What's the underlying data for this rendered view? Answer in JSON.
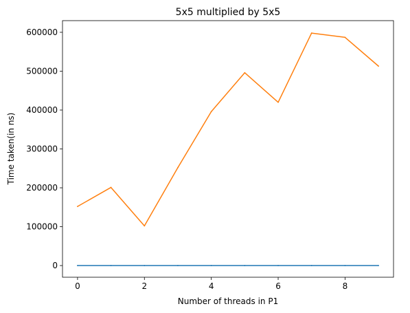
{
  "chart_data": {
    "type": "line",
    "title": "5x5 multiplied by 5x5",
    "xlabel": "Number of threads in P1",
    "ylabel": "Time taken(in ns)",
    "x": [
      0,
      1,
      2,
      3,
      4,
      5,
      6,
      7,
      8,
      9
    ],
    "xlim": [
      -0.45,
      9.45
    ],
    "ylim": [
      -30000,
      630000
    ],
    "xticks": [
      0,
      2,
      4,
      6,
      8
    ],
    "yticks": [
      0,
      100000,
      200000,
      300000,
      400000,
      500000,
      600000
    ],
    "grid": false,
    "series": [
      {
        "color": "#1f77b4",
        "values": [
          0,
          0,
          0,
          0,
          0,
          0,
          0,
          0,
          0,
          0
        ]
      },
      {
        "color": "#ff7f0e",
        "values": [
          152000,
          201000,
          102000,
          252000,
          396000,
          496000,
          420000,
          598000,
          587000,
          513000
        ]
      }
    ]
  }
}
